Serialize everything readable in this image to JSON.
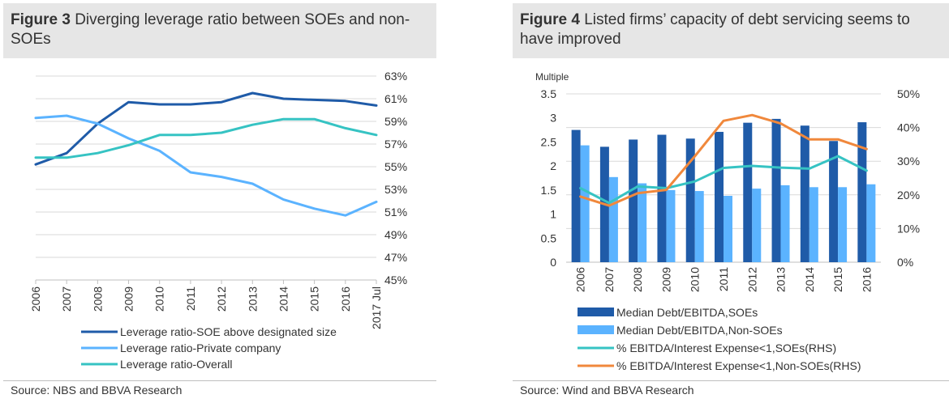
{
  "figure3": {
    "title_bold": "Figure 3",
    "title_rest": "Diverging leverage ratio between SOEs and non-SOEs",
    "source": "Source: NBS and BBVA Research"
  },
  "figure4": {
    "title_bold": "Figure 4",
    "title_rest": "Listed firms’ capacity of debt servicing seems to have improved",
    "source": "Source: Wind and BBVA Research"
  },
  "chart_data": [
    {
      "type": "line",
      "categories": [
        "2006",
        "2007",
        "2008",
        "2009",
        "2010",
        "2011",
        "2012",
        "2013",
        "2014",
        "2015",
        "2016",
        "2017 Jul"
      ],
      "y_right_ticks": [
        "45%",
        "47%",
        "49%",
        "51%",
        "53%",
        "55%",
        "57%",
        "59%",
        "61%",
        "63%"
      ],
      "ylim": [
        45,
        63
      ],
      "grid": true,
      "legend": "bottom",
      "colors": {
        "soe": "#1f5ba8",
        "private": "#5bb3ff",
        "overall": "#36c3c3"
      },
      "series": [
        {
          "name": "Leverage ratio-SOE above designated size",
          "key": "soe",
          "values": [
            55.2,
            56.2,
            58.8,
            60.7,
            60.5,
            60.5,
            60.7,
            61.5,
            61.0,
            60.9,
            60.8,
            60.4
          ]
        },
        {
          "name": "Leverage ratio-Private company",
          "key": "private",
          "values": [
            59.3,
            59.5,
            58.8,
            57.5,
            56.4,
            54.5,
            54.1,
            53.5,
            52.1,
            51.3,
            50.7,
            51.9
          ]
        },
        {
          "name": "Leverage ratio-Overall",
          "key": "overall",
          "values": [
            55.8,
            55.8,
            56.2,
            56.9,
            57.8,
            57.8,
            58.0,
            58.7,
            59.2,
            59.2,
            58.4,
            57.8
          ]
        }
      ]
    },
    {
      "type": "bar",
      "ylabel": "Multiple",
      "categories": [
        "2006",
        "2007",
        "2008",
        "2009",
        "2010",
        "2011",
        "2012",
        "2013",
        "2014",
        "2015",
        "2016"
      ],
      "y_left_ticks": [
        "0",
        "0.5",
        "1",
        "1.5",
        "2",
        "2.5",
        "3",
        "3.5"
      ],
      "ylim": [
        0,
        3.5
      ],
      "y_right_ticks": [
        "0%",
        "10%",
        "20%",
        "30%",
        "40%",
        "50%"
      ],
      "ylim_right": [
        0,
        50
      ],
      "grid": true,
      "legend": "bottom",
      "colors": {
        "debt_soe": "#1f5ba8",
        "debt_nonsoe": "#5bb3ff",
        "int_soe": "#36c3c3",
        "int_nonsoe": "#f0883c"
      },
      "series": [
        {
          "name": "Median Debt/EBITDA,SOEs",
          "key": "debt_soe",
          "kind": "bar",
          "values": [
            2.75,
            2.4,
            2.55,
            2.65,
            2.57,
            2.71,
            2.9,
            2.98,
            2.84,
            2.52,
            2.91
          ]
        },
        {
          "name": "Median Debt/EBITDA,Non-SOEs",
          "key": "debt_nonsoe",
          "kind": "bar",
          "values": [
            2.43,
            1.77,
            1.64,
            1.5,
            1.48,
            1.38,
            1.53,
            1.6,
            1.56,
            1.56,
            1.62
          ]
        },
        {
          "name": "% EBITDA/Interest Expense<1,SOEs(RHS)",
          "key": "int_soe",
          "kind": "line",
          "values": [
            22,
            17.6,
            22.5,
            22,
            24,
            28,
            28.6,
            28.1,
            27.8,
            31.5,
            27.2
          ]
        },
        {
          "name": "% EBITDA/Interest Expense<1,Non-SOEs(RHS)",
          "key": "int_nonsoe",
          "kind": "line",
          "values": [
            19.5,
            16.8,
            20.5,
            21.5,
            31.5,
            42,
            43.7,
            41.2,
            36.5,
            36.5,
            33.6
          ]
        }
      ]
    }
  ]
}
